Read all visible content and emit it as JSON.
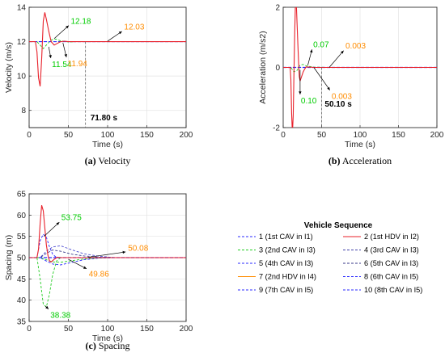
{
  "chart_data": [
    {
      "type": "line",
      "caption": {
        "tag": "(a)",
        "text": "Velocity"
      },
      "xlabel": "Time (s)",
      "ylabel": "Velocity (m/s)",
      "xlim": [
        0,
        200
      ],
      "ylim": [
        7,
        14
      ],
      "xticks": [
        "0",
        "50",
        "100",
        "150",
        "200"
      ],
      "yticks": [
        "8",
        "10",
        "12",
        "14"
      ],
      "grid": true,
      "equilibrium": 12,
      "hdv_curve": {
        "x": [
          0,
          8,
          10,
          12,
          14,
          16,
          18,
          20,
          22,
          25,
          28,
          32,
          36,
          40,
          45,
          50,
          60,
          70,
          80,
          200
        ],
        "y": [
          12,
          12,
          11.4,
          9.9,
          9.4,
          11.0,
          13.2,
          13.7,
          13.3,
          12.6,
          12.0,
          11.8,
          11.9,
          12.0,
          12.02,
          12.0,
          12.0,
          12.0,
          12.0,
          12.0
        ]
      },
      "cav_curve": {
        "x": [
          0,
          10,
          14,
          18,
          22,
          28,
          34,
          40,
          50,
          60,
          80,
          200
        ],
        "y": [
          12,
          12,
          11.8,
          11.6,
          11.8,
          12.1,
          12.15,
          12.05,
          11.98,
          12.0,
          12.0,
          12.0
        ]
      },
      "vline_x": 71.8,
      "annotations": [
        {
          "text": "12.18",
          "color": "#00cc00",
          "x": 32,
          "y": 12.18,
          "lx": 52,
          "ly": 13.0
        },
        {
          "text": "11.54",
          "color": "#00cc00",
          "x": 25,
          "y": 11.7,
          "lx": 28,
          "ly": 10.95
        },
        {
          "text": "11.94",
          "color": "#ff8c00",
          "x": 43,
          "y": 11.94,
          "lx": 48,
          "ly": 11.0
        },
        {
          "text": "12.03",
          "color": "#ff8c00",
          "x": 100,
          "y": 12.03,
          "lx": 120,
          "ly": 12.65
        },
        {
          "text": "71.80 s",
          "color": "#000000",
          "x": 71.8,
          "y": 8.1,
          "lx": 76,
          "ly": 7.6,
          "bold": true
        }
      ]
    },
    {
      "type": "line",
      "caption": {
        "tag": "(b)",
        "text": "Acceleration"
      },
      "xlabel": "Time (s)",
      "ylabel": "Acceleration (m/s2)",
      "xlim": [
        0,
        200
      ],
      "ylim": [
        -2,
        2
      ],
      "xticks": [
        "0",
        "50",
        "100",
        "150",
        "200"
      ],
      "yticks": [
        "-2",
        "0",
        "2"
      ],
      "grid": true,
      "equilibrium": 0,
      "hdv_curve": {
        "x": [
          0,
          9,
          10,
          11,
          12,
          13,
          14,
          15,
          16,
          17,
          18,
          19,
          20,
          21,
          22,
          24,
          26,
          28,
          30,
          34,
          40,
          60,
          200
        ],
        "y": [
          0,
          0,
          -0.4,
          -1.5,
          -2.2,
          -1.6,
          -0.2,
          1.2,
          2.2,
          2.2,
          1.5,
          0.8,
          0.2,
          -0.3,
          -0.45,
          -0.3,
          -0.15,
          -0.05,
          0.02,
          0.01,
          0,
          0,
          0
        ]
      },
      "cav_curve": {
        "x": [
          0,
          10,
          14,
          18,
          22,
          26,
          30,
          40,
          60,
          200
        ],
        "y": [
          0,
          0,
          -0.15,
          -0.1,
          0.08,
          0.1,
          0.05,
          0.01,
          0,
          0
        ]
      },
      "vline_x": 50.1,
      "annotations": [
        {
          "text": "0.07",
          "color": "#00cc00",
          "x": 32,
          "y": 0.07,
          "lx": 38,
          "ly": 0.65
        },
        {
          "text": "0.10",
          "color": "#00cc00",
          "x": 22,
          "y": -0.08,
          "lx": 22,
          "ly": -0.95
        },
        {
          "text": "0.003",
          "color": "#ff8c00",
          "x": 60,
          "y": 0.003,
          "lx": 80,
          "ly": 0.6
        },
        {
          "text": "0.003",
          "color": "#ff8c00",
          "x": 40,
          "y": -0.003,
          "lx": 62,
          "ly": -0.8
        },
        {
          "text": "50.10 s",
          "color": "#000000",
          "x": 50.1,
          "y": -1.15,
          "lx": 52,
          "ly": -1.2,
          "bold": true
        }
      ]
    },
    {
      "type": "line",
      "caption": {
        "tag": "(c)",
        "text": "Spacing"
      },
      "xlabel": "Time (s)",
      "ylabel": "Spacing (m)",
      "xlim": [
        0,
        200
      ],
      "ylim": [
        35,
        65
      ],
      "xticks": [
        "0",
        "50",
        "100",
        "150",
        "200"
      ],
      "yticks": [
        "35",
        "40",
        "45",
        "50",
        "55",
        "60",
        "65"
      ],
      "grid": true,
      "equilibrium": 50,
      "hdv_curve": {
        "x": [
          0,
          10,
          12,
          14,
          16,
          18,
          20,
          22,
          24,
          26,
          28,
          32,
          36,
          40,
          50,
          200
        ],
        "y": [
          50,
          50,
          52,
          58,
          62.3,
          61,
          57,
          53,
          50.5,
          49.2,
          49.0,
          49.6,
          50.1,
          50.0,
          50.0,
          50.0
        ]
      },
      "cav_curves": [
        {
          "x": [
            0,
            10,
            14,
            18,
            22,
            26,
            30,
            35,
            40,
            200
          ],
          "y": [
            50,
            50,
            54,
            55.5,
            54.8,
            52.5,
            50.8,
            50.0,
            50.0,
            50.0
          ]
        },
        {
          "x": [
            0,
            10,
            14,
            18,
            22,
            26,
            30,
            35,
            40,
            200
          ],
          "y": [
            50,
            50,
            45,
            39,
            38.4,
            41.5,
            46,
            49.2,
            50.0,
            50.0
          ]
        },
        {
          "x": [
            0,
            14,
            22,
            30,
            40,
            55,
            70,
            90,
            110,
            200
          ],
          "y": [
            50,
            50,
            51.5,
            52.5,
            52.8,
            51.8,
            50.9,
            50.3,
            50.0,
            50.0
          ]
        },
        {
          "x": [
            0,
            14,
            22,
            30,
            40,
            55,
            70,
            90,
            110,
            200
          ],
          "y": [
            50,
            50,
            51,
            51.8,
            51.5,
            50.8,
            50.4,
            50.1,
            50.0,
            50.0
          ]
        },
        {
          "x": [
            0,
            14,
            22,
            30,
            40,
            55,
            70,
            90,
            110,
            200
          ],
          "y": [
            50,
            50,
            49.2,
            48.5,
            48.3,
            48.9,
            49.5,
            49.9,
            50.0,
            50.0
          ]
        },
        {
          "x": [
            0,
            14,
            22,
            30,
            40,
            55,
            70,
            90,
            110,
            200
          ],
          "y": [
            50,
            50,
            49.5,
            49.0,
            48.9,
            49.3,
            49.7,
            49.95,
            50.0,
            50.0
          ]
        }
      ],
      "annotations": [
        {
          "text": "53.75",
          "color": "#00cc00",
          "x": 19,
          "y": 55,
          "lx": 40,
          "ly": 58.6
        },
        {
          "text": "38.38",
          "color": "#00cc00",
          "x": 21,
          "y": 38.6,
          "lx": 26,
          "ly": 37.6
        },
        {
          "text": "50.08",
          "color": "#ff8c00",
          "x": 75,
          "y": 50.08,
          "lx": 125,
          "ly": 51.4
        },
        {
          "text": "49.86",
          "color": "#ff8c00",
          "x": 50,
          "y": 49.6,
          "lx": 75,
          "ly": 47.2
        }
      ]
    }
  ],
  "legend": {
    "title": "Vehicle Sequence",
    "items": [
      {
        "label": "1 (1st CAV in I1)",
        "color": "#2a2aff",
        "dash": true
      },
      {
        "label": "2 (1st HDV in I2)",
        "color": "#e8202a",
        "dash": false
      },
      {
        "label": "3 (2nd CAV in I3)",
        "color": "#22cc22",
        "dash": true
      },
      {
        "label": "4 (3rd CAV in I3)",
        "color": "#4444aa",
        "dash": true
      },
      {
        "label": "5 (4th CAV in I3)",
        "color": "#2a2aff",
        "dash": true
      },
      {
        "label": "6 (5th CAV in I3)",
        "color": "#3a3a8a",
        "dash": true
      },
      {
        "label": "7 (2nd HDV in I4)",
        "color": "#ff8c00",
        "dash": false
      },
      {
        "label": "8 (6th CAV in I5)",
        "color": "#2a2aff",
        "dash": true
      },
      {
        "label": "9 (7th CAV in I5)",
        "color": "#2a2aff",
        "dash": true
      },
      {
        "label": "10 (8th CAV in I5)",
        "color": "#2a2aff",
        "dash": true
      }
    ]
  }
}
